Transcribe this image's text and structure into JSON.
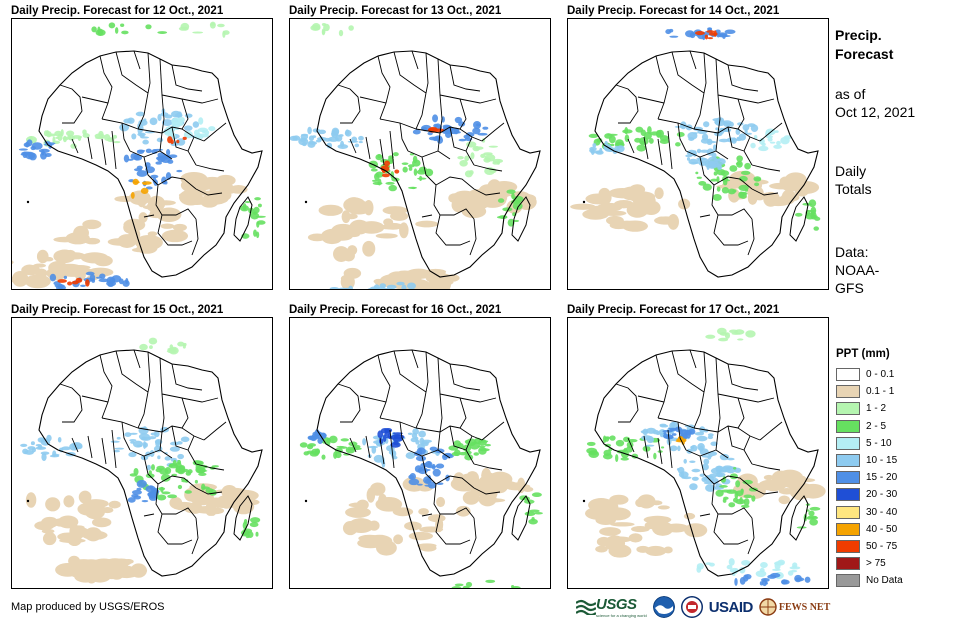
{
  "panels": [
    {
      "title": "Daily Precip. Forecast for 12 Oct., 2021",
      "day": 12
    },
    {
      "title": "Daily Precip. Forecast for 13 Oct., 2021",
      "day": 13
    },
    {
      "title": "Daily Precip. Forecast for 14 Oct., 2021",
      "day": 14
    },
    {
      "title": "Daily Precip. Forecast for 15 Oct., 2021",
      "day": 15
    },
    {
      "title": "Daily Precip. Forecast for 16 Oct., 2021",
      "day": 16
    },
    {
      "title": "Daily Precip. Forecast for 17 Oct., 2021",
      "day": 17
    }
  ],
  "sidebar": {
    "title_line1": "Precip.",
    "title_line2": "Forecast",
    "asof_line1": "as of",
    "asof_line2": "Oct 12, 2021",
    "totals_line1": "Daily",
    "totals_line2": "Totals",
    "data_line1": "Data:",
    "data_line2": "NOAA-",
    "data_line3": "GFS"
  },
  "legend": {
    "title": "PPT (mm)",
    "items": [
      {
        "label": "0 - 0.1",
        "color": "#ffffff"
      },
      {
        "label": "0.1 - 1",
        "color": "#e8d4b4"
      },
      {
        "label": "1 - 2",
        "color": "#b5f5b0"
      },
      {
        "label": "2 - 5",
        "color": "#66e060"
      },
      {
        "label": "5 - 10",
        "color": "#b4eef4"
      },
      {
        "label": "10 - 15",
        "color": "#8ecbf0"
      },
      {
        "label": "15 - 20",
        "color": "#4f8fe6"
      },
      {
        "label": "20 - 30",
        "color": "#1f4fd6"
      },
      {
        "label": "30 - 40",
        "color": "#ffe680"
      },
      {
        "label": "40 - 50",
        "color": "#f5a300"
      },
      {
        "label": "50 - 75",
        "color": "#f03c00"
      },
      {
        "label": "> 75",
        "color": "#a01818"
      },
      {
        "label": "No Data",
        "color": "#999999"
      }
    ]
  },
  "footer": {
    "credit": "Map produced by USGS/EROS"
  },
  "logos": {
    "usgs": "USGS",
    "usgs_tagline": "science for a changing world",
    "usaid": "USAID",
    "fews": "FEWS NET"
  }
}
